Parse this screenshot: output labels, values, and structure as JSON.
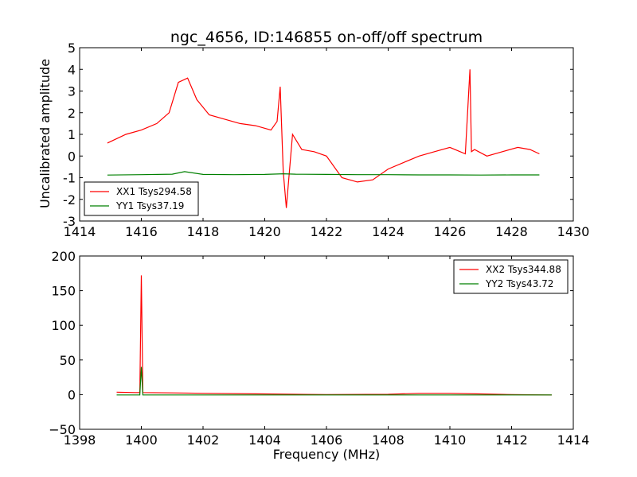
{
  "chart_data": [
    {
      "type": "line",
      "title": "ngc_4656, ID:146855 on-off/off spectrum",
      "xlabel": "",
      "ylabel": "Uncalibrated amplitude",
      "xlim": [
        1414,
        1430
      ],
      "ylim": [
        -3,
        5
      ],
      "xticks": [
        1414,
        1416,
        1418,
        1420,
        1422,
        1424,
        1426,
        1428,
        1430
      ],
      "yticks": [
        -3,
        -2,
        -1,
        0,
        1,
        2,
        3,
        4,
        5
      ],
      "legend_position": "lower-left",
      "series": [
        {
          "name": "XX1 Tsys294.58",
          "color": "#ff0000",
          "x": [
            1414.9,
            1415.5,
            1416.0,
            1416.5,
            1416.9,
            1417.2,
            1417.5,
            1417.8,
            1418.2,
            1418.7,
            1419.2,
            1419.7,
            1420.2,
            1420.4,
            1420.5,
            1420.6,
            1420.7,
            1420.9,
            1421.2,
            1421.6,
            1422.0,
            1422.5,
            1423.0,
            1423.5,
            1424.0,
            1424.5,
            1425.0,
            1425.5,
            1426.0,
            1426.5,
            1426.65,
            1426.7,
            1426.8,
            1427.2,
            1427.7,
            1428.2,
            1428.6,
            1428.9
          ],
          "y": [
            0.6,
            1.0,
            1.2,
            1.5,
            2.0,
            3.4,
            3.6,
            2.6,
            1.9,
            1.7,
            1.5,
            1.4,
            1.2,
            1.6,
            3.2,
            -0.7,
            -2.4,
            1.0,
            0.3,
            0.2,
            0.0,
            -1.0,
            -1.2,
            -1.1,
            -0.6,
            -0.3,
            0.0,
            0.2,
            0.4,
            0.1,
            4.0,
            0.2,
            0.3,
            0.0,
            0.2,
            0.4,
            0.3,
            0.1
          ]
        },
        {
          "name": "YY1 Tsys37.19",
          "color": "#008000",
          "x": [
            1414.9,
            1416.0,
            1417.0,
            1417.4,
            1418.0,
            1419.0,
            1420.0,
            1420.6,
            1421.0,
            1422.0,
            1423.0,
            1424.0,
            1425.0,
            1426.0,
            1427.0,
            1428.0,
            1428.9
          ],
          "y": [
            -0.88,
            -0.86,
            -0.84,
            -0.72,
            -0.85,
            -0.86,
            -0.85,
            -0.82,
            -0.84,
            -0.85,
            -0.86,
            -0.86,
            -0.87,
            -0.87,
            -0.88,
            -0.87,
            -0.87
          ]
        }
      ]
    },
    {
      "type": "line",
      "title": "",
      "xlabel": "Frequency (MHz)",
      "ylabel": "",
      "xlim": [
        1398,
        1414
      ],
      "ylim": [
        -50,
        200
      ],
      "xticks": [
        1398,
        1400,
        1402,
        1404,
        1406,
        1408,
        1410,
        1412,
        1414
      ],
      "yticks": [
        -50,
        0,
        50,
        100,
        150,
        200
      ],
      "ytick_labels": [
        "−50",
        "0",
        "50",
        "100",
        "150",
        "200"
      ],
      "legend_position": "top-right",
      "series": [
        {
          "name": "XX2 Tsys344.88",
          "color": "#ff0000",
          "x": [
            1399.2,
            1399.8,
            1399.95,
            1400.0,
            1400.05,
            1401.0,
            1402.0,
            1404.0,
            1406.0,
            1408.0,
            1409.0,
            1410.0,
            1411.0,
            1412.0,
            1413.3
          ],
          "y": [
            3.5,
            3.0,
            3.0,
            172.0,
            3.0,
            2.5,
            2.0,
            1.0,
            0.0,
            0.5,
            2.0,
            2.0,
            1.0,
            0.0,
            -0.5
          ]
        },
        {
          "name": "YY2 Tsys43.72",
          "color": "#008000",
          "x": [
            1399.2,
            1399.95,
            1400.0,
            1400.05,
            1402.0,
            1404.0,
            1406.0,
            1408.0,
            1410.0,
            1412.0,
            1413.3
          ],
          "y": [
            -0.5,
            -0.5,
            40.0,
            -0.5,
            -0.5,
            -0.5,
            -0.5,
            -0.5,
            -0.5,
            -0.5,
            -0.5
          ]
        }
      ]
    }
  ]
}
